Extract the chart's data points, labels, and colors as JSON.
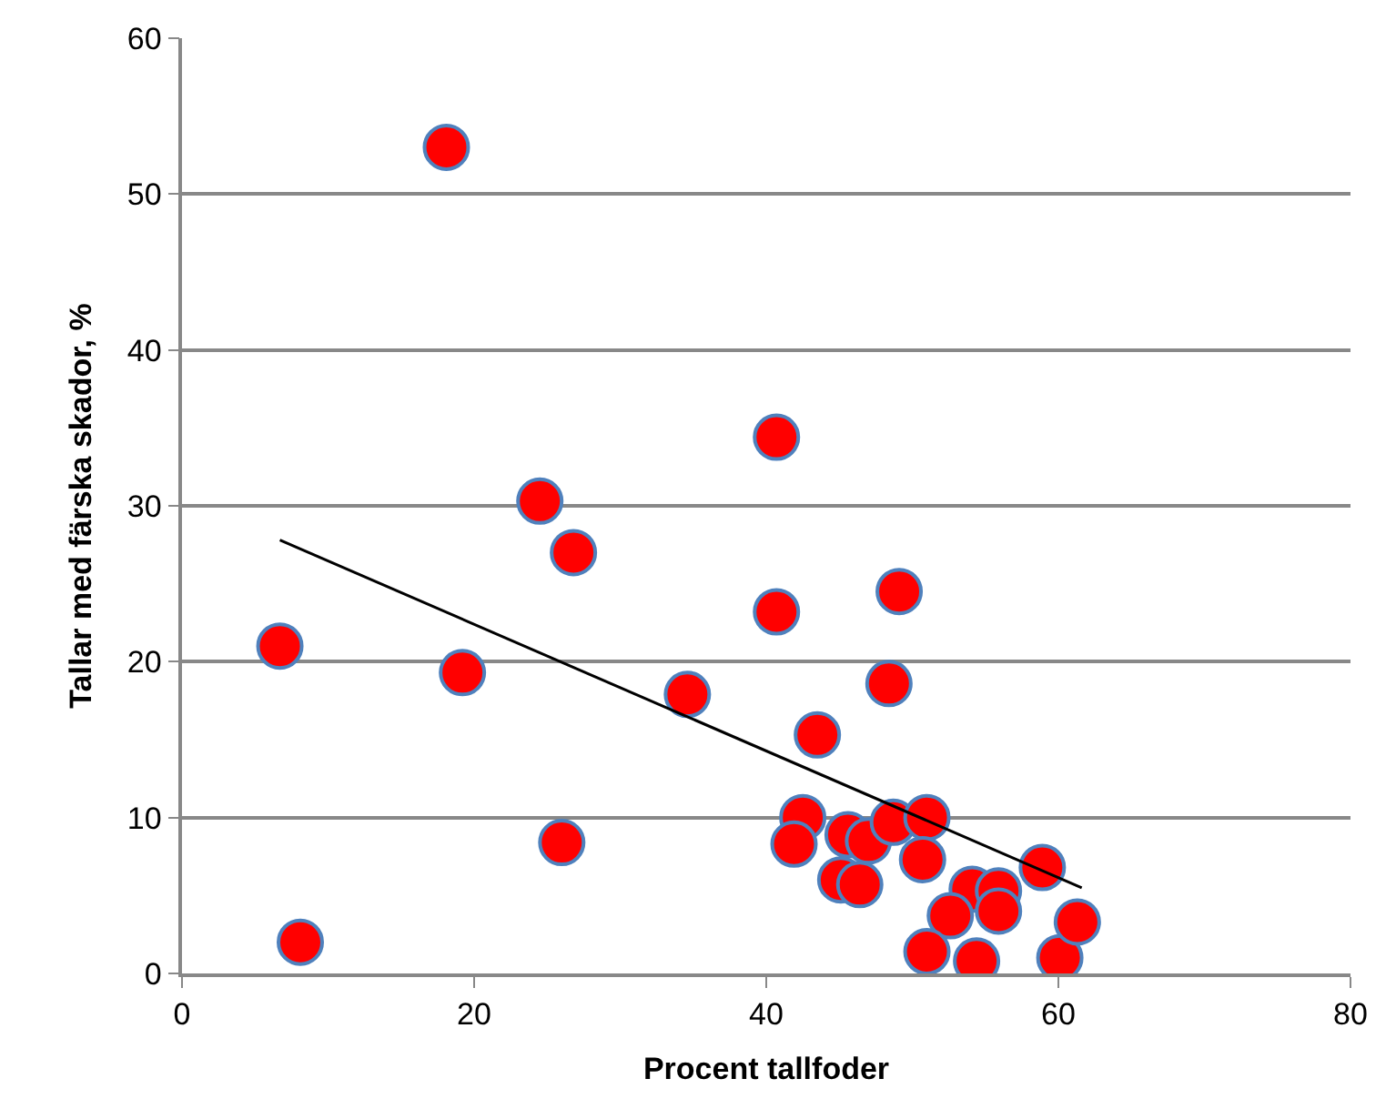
{
  "chart_data": {
    "type": "scatter",
    "xlabel": "Procent tallfoder",
    "ylabel": "Tallar med färska skador, %",
    "xlim": [
      0,
      80
    ],
    "xticks": [
      0,
      20,
      40,
      60,
      80
    ],
    "ylim": [
      0,
      60
    ],
    "yticks": [
      0,
      10,
      20,
      30,
      40,
      50,
      60
    ],
    "grid": "y",
    "marker": "circle",
    "series": [
      {
        "color": "#ff0000",
        "x": [
          18.1,
          40.7,
          24.5,
          26.8,
          6.7,
          40.7,
          19.2,
          34.6,
          43.5,
          48.4,
          49.1,
          26.0,
          8.1,
          42.5,
          41.9,
          45.6,
          47.0,
          45.1,
          46.4,
          48.7,
          51.0,
          50.7,
          58.9,
          54.1,
          55.9,
          52.6,
          55.9,
          51.0,
          54.4,
          60.1,
          61.3
        ],
        "values": [
          53.0,
          34.4,
          30.3,
          27.0,
          21.0,
          23.2,
          19.3,
          17.9,
          15.3,
          18.6,
          24.5,
          8.4,
          2.0,
          10.0,
          8.3,
          8.9,
          8.5,
          6.0,
          5.7,
          9.7,
          10.0,
          7.3,
          6.8,
          5.4,
          5.3,
          3.7,
          4.0,
          1.4,
          0.8,
          1.0,
          3.3
        ]
      },
      {
        "type": "line",
        "color": "#000000",
        "marker": "none",
        "x": [
          6.7,
          61.6
        ],
        "values": [
          27.8,
          5.5
        ]
      }
    ]
  }
}
